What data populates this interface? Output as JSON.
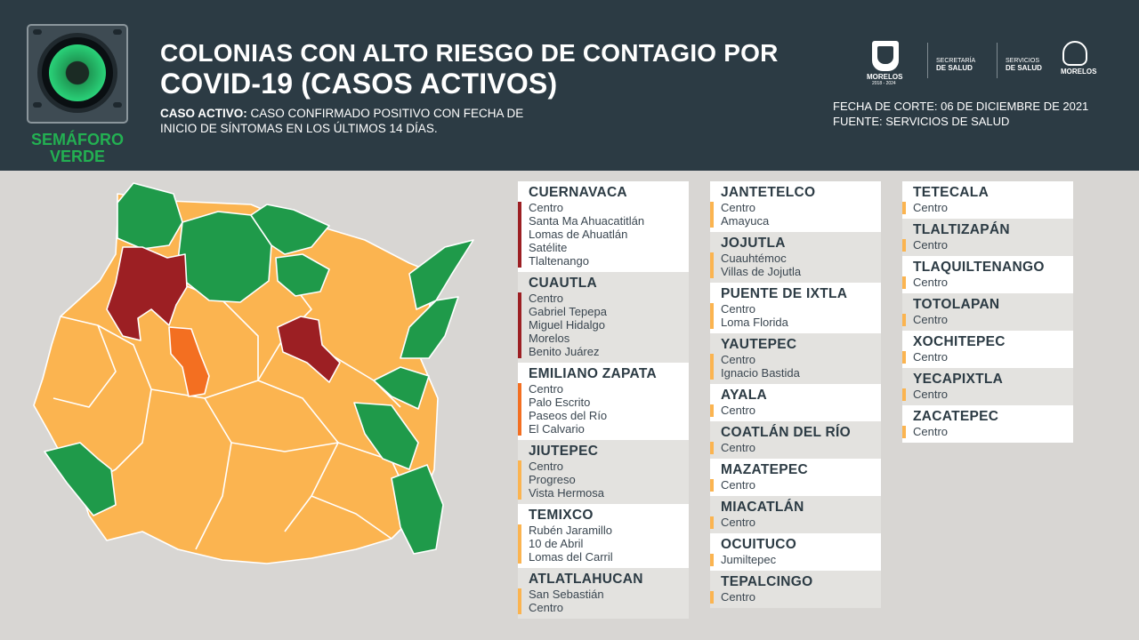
{
  "header": {
    "semaforo": "SEMÁFORO VERDE",
    "title_line1": "COLONIAS CON ALTO RIESGO DE CONTAGIO POR",
    "title_line2": "COVID-19 (CASOS ACTIVOS)",
    "caso_label": "CASO ACTIVO:",
    "caso_text_line1": "CASO CONFIRMADO POSITIVO CON FECHA DE",
    "caso_text_line2": "INICIO DE SÍNTOMAS EN LOS ÚLTIMOS 14 DÍAS.",
    "fecha": "FECHA DE CORTE: 06 DE DICIEMBRE DE 2021",
    "fuente": "FUENTE: SERVICIOS DE SALUD",
    "logos": {
      "morelos": "MORELOS",
      "morelos_years": "2018 - 2024",
      "secretaria_line1": "SECRETARÍA",
      "secretaria_line2": "DE SALUD",
      "servicios_line1": "SERVICIOS",
      "servicios_line2": "DE SALUD",
      "morelos_right": "MORELOS"
    }
  },
  "colors": {
    "header_bg": "#2c3b44",
    "green": "#1f9a4a",
    "yellow": "#fbb450",
    "orange": "#f36f21",
    "red": "#9c1f23",
    "title_text": "#2c3b44"
  },
  "map": {
    "icon": "morelos-municipalities-map",
    "levels": [
      "green",
      "yellow",
      "orange",
      "red"
    ]
  },
  "columns": [
    [
      {
        "name": "CUERNAVACA",
        "risk": "red",
        "colonias": [
          "Centro",
          "Santa Ma Ahuacatitlán",
          "Lomas de Ahuatlán",
          "Satélite",
          "Tlaltenango"
        ]
      },
      {
        "name": "CUAUTLA",
        "risk": "red",
        "colonias": [
          "Centro",
          "Gabriel Tepepa",
          "Miguel Hidalgo",
          "Morelos",
          "Benito Juárez"
        ]
      },
      {
        "name": "EMILIANO ZAPATA",
        "risk": "orange",
        "colonias": [
          "Centro",
          "Palo Escrito",
          "Paseos del Río",
          "El Calvario"
        ]
      },
      {
        "name": "JIUTEPEC",
        "risk": "yellow",
        "colonias": [
          "Centro",
          "Progreso",
          "Vista Hermosa"
        ]
      },
      {
        "name": "TEMIXCO",
        "risk": "yellow",
        "colonias": [
          "Rubén Jaramillo",
          "10 de Abril",
          "Lomas del Carril"
        ]
      },
      {
        "name": "ATLATLAHUCAN",
        "risk": "yellow",
        "colonias": [
          "San Sebastián",
          "Centro"
        ]
      }
    ],
    [
      {
        "name": "JANTETELCO",
        "risk": "yellow",
        "colonias": [
          "Centro",
          "Amayuca"
        ]
      },
      {
        "name": "JOJUTLA",
        "risk": "yellow",
        "colonias": [
          "Cuauhtémoc",
          "Villas de Jojutla"
        ]
      },
      {
        "name": "PUENTE DE IXTLA",
        "risk": "yellow",
        "colonias": [
          "Centro",
          "Loma Florida"
        ]
      },
      {
        "name": "YAUTEPEC",
        "risk": "yellow",
        "colonias": [
          "Centro",
          "Ignacio Bastida"
        ]
      },
      {
        "name": "AYALA",
        "risk": "yellow",
        "colonias": [
          "Centro"
        ]
      },
      {
        "name": "COATLÁN DEL RÍO",
        "risk": "yellow",
        "colonias": [
          "Centro"
        ]
      },
      {
        "name": "MAZATEPEC",
        "risk": "yellow",
        "colonias": [
          "Centro"
        ]
      },
      {
        "name": "MIACATLÁN",
        "risk": "yellow",
        "colonias": [
          "Centro"
        ]
      },
      {
        "name": "OCUITUCO",
        "risk": "yellow",
        "colonias": [
          "Jumiltepec"
        ]
      },
      {
        "name": "TEPALCINGO",
        "risk": "yellow",
        "colonias": [
          "Centro"
        ]
      }
    ],
    [
      {
        "name": "TETECALA",
        "risk": "yellow",
        "colonias": [
          "Centro"
        ]
      },
      {
        "name": "TLALTIZAPÁN",
        "risk": "yellow",
        "colonias": [
          "Centro"
        ]
      },
      {
        "name": "TLAQUILTENANGO",
        "risk": "yellow",
        "colonias": [
          "Centro"
        ]
      },
      {
        "name": "TOTOLAPAN",
        "risk": "yellow",
        "colonias": [
          "Centro"
        ]
      },
      {
        "name": "XOCHITEPEC",
        "risk": "yellow",
        "colonias": [
          "Centro"
        ]
      },
      {
        "name": "YECAPIXTLA",
        "risk": "yellow",
        "colonias": [
          "Centro"
        ]
      },
      {
        "name": "ZACATEPEC",
        "risk": "yellow",
        "colonias": [
          "Centro"
        ]
      }
    ]
  ]
}
